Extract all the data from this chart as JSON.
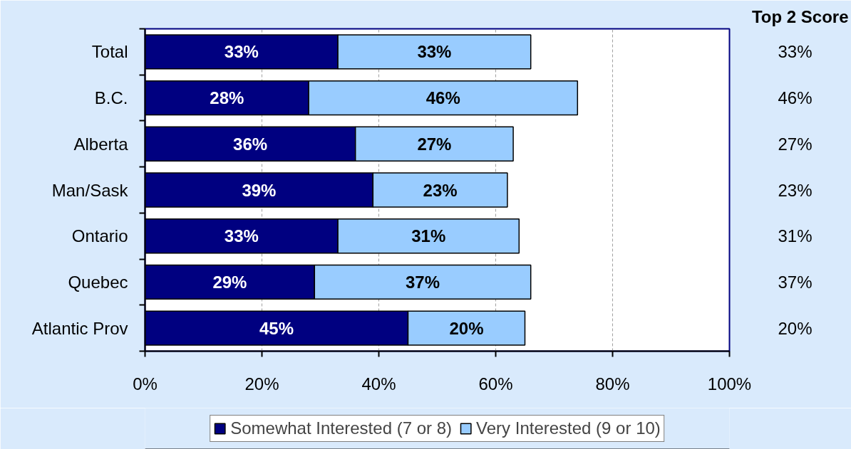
{
  "chart_data": {
    "type": "bar",
    "orientation": "horizontal",
    "stacked": true,
    "categories": [
      "Total",
      "B.C.",
      "Alberta",
      "Man/Sask",
      "Ontario",
      "Quebec",
      "Atlantic Prov"
    ],
    "series": [
      {
        "name": "Somewhat Interested (7 or 8)",
        "color": "#000080",
        "values": [
          33,
          28,
          36,
          39,
          33,
          29,
          45
        ],
        "value_labels": [
          "33%",
          "28%",
          "36%",
          "39%",
          "33%",
          "29%",
          "45%"
        ]
      },
      {
        "name": "Very Interested (9 or 10)",
        "color": "#99ccff",
        "values": [
          33,
          46,
          27,
          23,
          31,
          37,
          20
        ],
        "value_labels": [
          "33%",
          "46%",
          "27%",
          "23%",
          "31%",
          "37%",
          "20%"
        ]
      }
    ],
    "xlim": [
      0,
      100
    ],
    "xticks": [
      {
        "value": 0,
        "label": "0%"
      },
      {
        "value": 20,
        "label": "20%"
      },
      {
        "value": 40,
        "label": "40%"
      },
      {
        "value": 60,
        "label": "60%"
      },
      {
        "value": 80,
        "label": "80%"
      },
      {
        "value": 100,
        "label": "100%"
      }
    ],
    "grid": "x",
    "legend": "bottom",
    "annotations": [
      "Top 2 Score",
      {
        "text": "33%",
        "y": "Total"
      },
      {
        "text": "46%",
        "y": "B.C."
      },
      {
        "text": "27%",
        "y": "Alberta"
      },
      {
        "text": "23%",
        "y": "Man/Sask"
      },
      {
        "text": "31%",
        "y": "Ontario"
      },
      {
        "text": "37%",
        "y": "Quebec"
      },
      {
        "text": "20%",
        "y": "Atlantic Prov"
      }
    ]
  }
}
